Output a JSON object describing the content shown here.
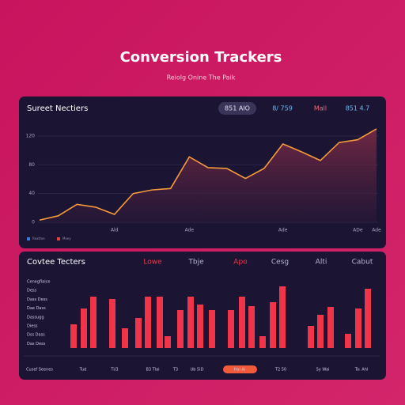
{
  "header": {
    "title": "Conversion Trackers",
    "subtitle": "Reiolg Onine The Paik"
  },
  "chart_data": [
    {
      "type": "line",
      "title": "Sureet Nectiers",
      "pills": [
        "851 AIO",
        "8/ 759",
        "Mall",
        "851 4.7"
      ],
      "categories": [
        null,
        null,
        null,
        null,
        "Ald",
        null,
        null,
        null,
        "Ade",
        null,
        null,
        null,
        null,
        "Ade",
        null,
        null,
        null,
        "ADe",
        "Ade"
      ],
      "values": [
        3,
        9,
        25,
        21,
        11,
        40,
        45,
        47,
        91,
        76,
        75,
        61,
        75,
        109,
        98,
        86,
        111,
        115,
        130
      ],
      "color": "#f59a3a",
      "ylim": [
        0,
        135
      ],
      "yticks": [
        0,
        40,
        80,
        120
      ],
      "grid": true,
      "legend": [
        {
          "label": "Reattee",
          "color": "#3a7bd5"
        },
        {
          "label": "Moey",
          "color": "#e8433e"
        }
      ]
    },
    {
      "type": "bar",
      "title": "Covtee Tecters",
      "column_labels": [
        "Lowe",
        "Tbje",
        "Apo",
        "Cesg",
        "Alti",
        "Cabut"
      ],
      "row_labels": [
        "Cenegflaice",
        "Dess",
        "Dass Dess",
        "Dae Dass",
        "Dassugg",
        "Diess",
        "Dss Dass",
        "Das Dess"
      ],
      "footer_labels": [
        "Cusef Seenes",
        "Tud",
        "Ti/3",
        "B3 Tlai",
        "T3",
        "Ub 5iD",
        "Hai Ai",
        "T2 50",
        "Sy Wai",
        "To: Ahl"
      ],
      "values": [
        30,
        50,
        65,
        62,
        25,
        38,
        65,
        65,
        15,
        48,
        65,
        55,
        48,
        48,
        65,
        53,
        15,
        58,
        78,
        28,
        42,
        52,
        18,
        50,
        75
      ],
      "color": "#f0354a",
      "ylim": [
        0,
        80
      ]
    }
  ]
}
